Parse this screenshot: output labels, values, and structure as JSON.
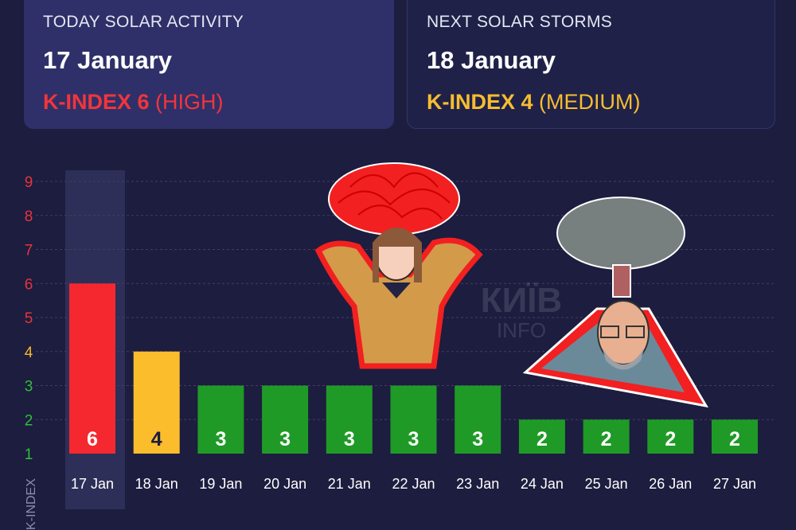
{
  "today": {
    "title": "TODAY SOLAR ACTIVITY",
    "date": "17 January",
    "kindex_label": "K-INDEX 6",
    "kindex_level": "(HIGH)",
    "color": "#f2353b"
  },
  "next": {
    "title": "NEXT SOLAR STORMS",
    "date": "18 January",
    "kindex_label": "K-INDEX 4",
    "kindex_level": "(MEDIUM)",
    "color": "#f7bd2f"
  },
  "watermark": {
    "line1": "КИЇВ",
    "line2": "INFO"
  },
  "chart_data": {
    "type": "bar",
    "ylabel": "K-INDEX",
    "ylim": [
      1,
      9
    ],
    "yticks": [
      1,
      2,
      3,
      4,
      5,
      6,
      7,
      8,
      9
    ],
    "grid": true,
    "categories": [
      "17 Jan",
      "18 Jan",
      "19 Jan",
      "20 Jan",
      "21 Jan",
      "22 Jan",
      "23 Jan",
      "24 Jan",
      "25 Jan",
      "26 Jan",
      "27 Jan"
    ],
    "values": [
      6,
      4,
      3,
      3,
      3,
      3,
      3,
      2,
      2,
      2,
      2
    ],
    "highlighted_category": "17 Jan",
    "colors": {
      "high": "#f5282f",
      "medium": "#fbbd2c",
      "low": "#1f9a26"
    }
  }
}
